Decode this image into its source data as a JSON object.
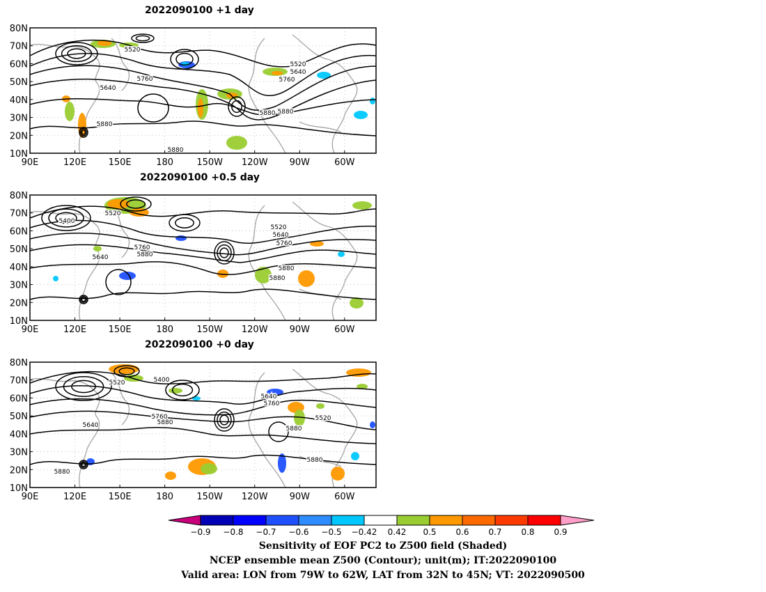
{
  "panels": [
    {
      "title": "2022090100  +1 day",
      "contour_labels": [
        "5520",
        "5640",
        "5760",
        "5880",
        "5880",
        "5880",
        "5880",
        "5520",
        "5640",
        "5760"
      ]
    },
    {
      "title": "2022090100  +0.5 day",
      "contour_labels": [
        "5400",
        "5520",
        "5640",
        "5760",
        "5880",
        "5520",
        "5640",
        "5760",
        "5880",
        "5880"
      ]
    },
    {
      "title": "2022090100  +0 day",
      "contour_labels": [
        "5520",
        "5400",
        "5640",
        "5760",
        "5880",
        "5640",
        "5760",
        "5520",
        "5880",
        "5880",
        "5880"
      ]
    }
  ],
  "lat_labels": [
    "80N",
    "70N",
    "60N",
    "50N",
    "40N",
    "30N",
    "20N",
    "10N"
  ],
  "lon_labels": [
    "90E",
    "120E",
    "150E",
    "180",
    "150W",
    "120W",
    "90W",
    "60W"
  ],
  "colorbar": {
    "tick_labels": [
      "−0.9",
      "−0.8",
      "−0.7",
      "−0.6",
      "−0.5",
      "−0.42",
      "0.42",
      "0.5",
      "0.6",
      "0.7",
      "0.8",
      "0.9"
    ],
    "colors": {
      "below_min": "#c8007c",
      "bins": [
        "#0000b4",
        "#0000ff",
        "#1e50ff",
        "#2f8cff",
        "#00c8ff",
        "#ffffff",
        "#9acd32",
        "#ff9900",
        "#ff6a00",
        "#ff3a00",
        "#ff0000"
      ],
      "above_max": "#ff9ec8"
    }
  },
  "footer": {
    "line1": "Sensitivity of EOF PC2 to Z500 field (Shaded)",
    "line2": "NCEP ensemble mean Z500 (Contour); unit(m); IT:2022090100",
    "line3": "Valid area: LON from 79W to 62W, LAT from 32N to 45N; VT: 2022090500"
  }
}
